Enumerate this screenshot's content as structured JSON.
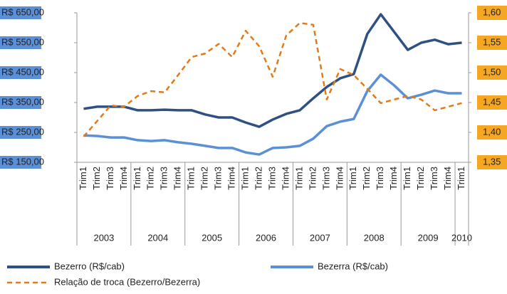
{
  "chart_data": {
    "type": "line",
    "categories": [
      "Trim1",
      "Trim2",
      "Trim3",
      "Trim4",
      "Trim1",
      "Trim2",
      "Trim3",
      "Trim4",
      "Trim1",
      "Trim2",
      "Trim3",
      "Trim4",
      "Trim1",
      "Trim2",
      "Trim3",
      "Trim4",
      "Trim1",
      "Trim2",
      "Trim3",
      "Trim4",
      "Trim1",
      "Trim2",
      "Trim3",
      "Trim4",
      "Trim1",
      "Trim2",
      "Trim3",
      "Trim4",
      "Trim1"
    ],
    "groups": [
      "2003",
      null,
      null,
      null,
      "2004",
      null,
      null,
      null,
      "2005",
      null,
      null,
      null,
      "2006",
      null,
      null,
      null,
      "2007",
      null,
      null,
      null,
      "2008",
      null,
      null,
      null,
      "2009",
      null,
      null,
      null,
      "2010"
    ],
    "series": [
      {
        "name": "Bezerro (R$/cab)",
        "color": "#2f5182",
        "style": "solid",
        "axis": "y",
        "values": [
          329,
          336,
          336,
          336,
          324,
          324,
          326,
          324,
          324,
          310,
          300,
          300,
          283,
          269,
          293,
          312,
          324,
          364,
          402,
          431,
          445,
          579,
          645,
          586,
          526,
          550,
          560,
          545,
          550
        ]
      },
      {
        "name": "Bezerra (R$/cab)",
        "color": "#5b8fd6",
        "style": "solid",
        "axis": "y",
        "values": [
          240,
          238,
          233,
          233,
          224,
          221,
          224,
          217,
          212,
          205,
          198,
          198,
          183,
          176,
          198,
          200,
          205,
          229,
          271,
          286,
          295,
          388,
          443,
          407,
          364,
          376,
          390,
          381,
          381
        ]
      },
      {
        "name": "Relação de troca (Bezerro/Bezerra)",
        "color": "#e07b1a",
        "style": "dashed",
        "axis": "y2",
        "values": [
          1.393,
          1.419,
          1.445,
          1.443,
          1.461,
          1.469,
          1.467,
          1.496,
          1.526,
          1.532,
          1.548,
          1.526,
          1.57,
          1.544,
          1.493,
          1.562,
          1.583,
          1.58,
          1.455,
          1.506,
          1.496,
          1.473,
          1.449,
          1.455,
          1.461,
          1.455,
          1.437,
          1.443,
          1.449
        ]
      }
    ],
    "ylim": [
      150,
      650
    ],
    "yticks": [
      {
        "value": 150,
        "label": "R$ 150,00"
      },
      {
        "value": 250,
        "label": "R$ 250,00"
      },
      {
        "value": 350,
        "label": "R$ 350,00"
      },
      {
        "value": 450,
        "label": "R$ 450,00"
      },
      {
        "value": 550,
        "label": "R$ 550,00"
      },
      {
        "value": 650,
        "label": "R$ 650,00"
      }
    ],
    "y2lim": [
      1.35,
      1.6
    ],
    "y2ticks": [
      {
        "value": 1.35,
        "label": "1,35"
      },
      {
        "value": 1.4,
        "label": "1,40"
      },
      {
        "value": 1.45,
        "label": "1,45"
      },
      {
        "value": 1.5,
        "label": "1,50"
      },
      {
        "value": 1.55,
        "label": "1,55"
      },
      {
        "value": 1.6,
        "label": "1,60"
      }
    ],
    "grid": false,
    "legend": "bottom"
  }
}
